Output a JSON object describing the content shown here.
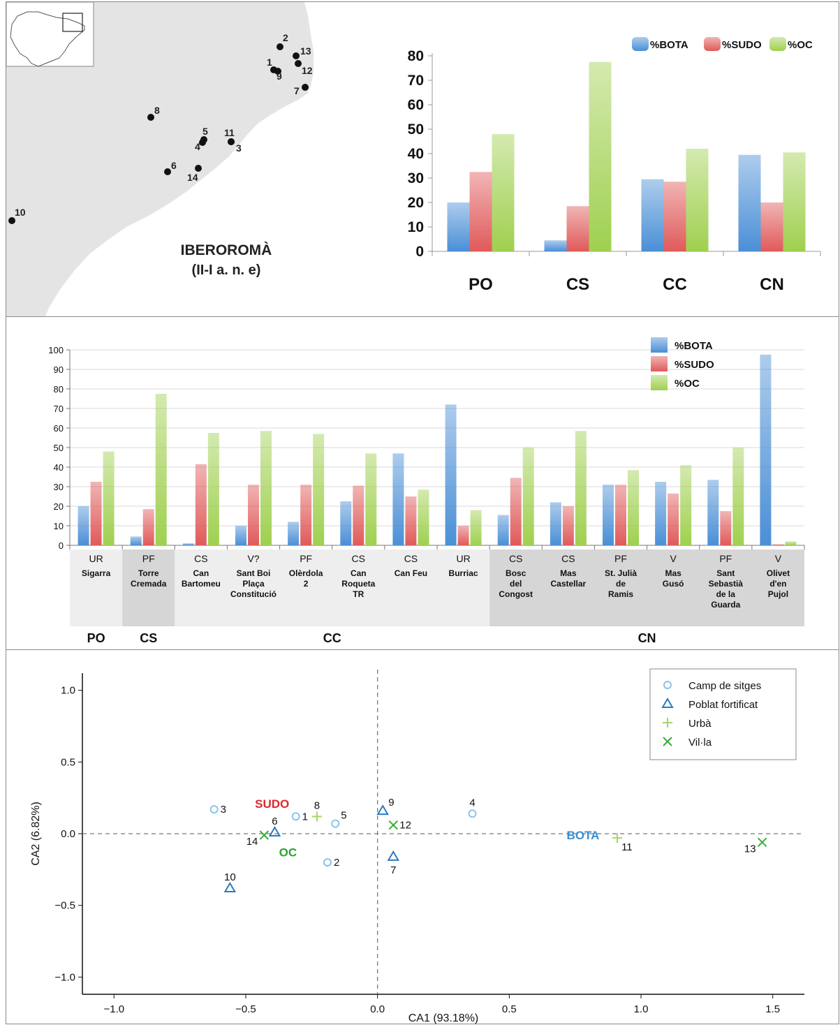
{
  "map": {
    "title_line1": "IBERO­ROMÀ",
    "title_line2": "(II-I a. n. e)",
    "site_labels": [
      "1",
      "2",
      "3",
      "4",
      "5",
      "6",
      "7",
      "8",
      "9",
      "10",
      "11",
      "12",
      "13",
      "14"
    ]
  },
  "colors": {
    "bota": "#4a8fd6",
    "sudo": "#e05a5a",
    "oc": "#9fd04f",
    "light_group": "#eeeeee",
    "dark_group": "#d6d6d6"
  },
  "chart_data": [
    {
      "type": "bar",
      "categories": [
        "PO",
        "CS",
        "CC",
        "CN"
      ],
      "series": [
        {
          "name": "%BOTA",
          "values": [
            20,
            4.5,
            29.5,
            39.5
          ]
        },
        {
          "name": "%SUDO",
          "values": [
            32.5,
            18.5,
            28.5,
            20
          ]
        },
        {
          "name": "%OC",
          "values": [
            48,
            77.5,
            42,
            40.5
          ]
        }
      ],
      "ylim": [
        0,
        80
      ],
      "yticks": [
        "0",
        "10",
        "20",
        "30",
        "40",
        "50",
        "60",
        "70",
        "80"
      ],
      "legend": "top-right",
      "grid": false
    },
    {
      "type": "bar",
      "categories": [
        {
          "type": "UR",
          "name": [
            "Sigarra"
          ]
        },
        {
          "type": "PF",
          "name": [
            "Torre",
            "Cremada"
          ]
        },
        {
          "type": "CS",
          "name": [
            "Can",
            "Bartomeu"
          ]
        },
        {
          "type": "V?",
          "name": [
            "Sant Boi",
            "Plaça",
            "Constitució"
          ]
        },
        {
          "type": "PF",
          "name": [
            "Olèrdola",
            "2"
          ]
        },
        {
          "type": "CS",
          "name": [
            "Can",
            "Roqueta",
            "TR"
          ]
        },
        {
          "type": "CS",
          "name": [
            "Can Feu"
          ]
        },
        {
          "type": "UR",
          "name": [
            "Burriac"
          ]
        },
        {
          "type": "CS",
          "name": [
            "Bosc",
            "del",
            "Congost"
          ]
        },
        {
          "type": "CS",
          "name": [
            "Mas",
            "Castellar"
          ]
        },
        {
          "type": "PF",
          "name": [
            "St. Julià",
            "de",
            "Ramis"
          ]
        },
        {
          "type": "V",
          "name": [
            "Mas",
            "Gusó"
          ]
        },
        {
          "type": "PF",
          "name": [
            "Sant",
            "Sebastià",
            "de la",
            "Guarda"
          ]
        },
        {
          "type": "V",
          "name": [
            "Olivet",
            "d'en",
            "Pujol"
          ]
        }
      ],
      "series": [
        {
          "name": "%BOTA",
          "values": [
            20,
            4.5,
            1,
            10,
            12,
            22.5,
            47,
            72,
            15.5,
            22,
            31,
            32.5,
            33.5,
            97.5
          ]
        },
        {
          "name": "%SUDO",
          "values": [
            32.5,
            18.5,
            41.5,
            31,
            31,
            30.5,
            25,
            10,
            34.5,
            20,
            31,
            26.5,
            17.5,
            0.5
          ]
        },
        {
          "name": "%OC",
          "values": [
            48,
            77.5,
            57.5,
            58.5,
            57,
            47,
            28.5,
            18,
            50,
            58.5,
            38.5,
            41,
            50,
            2
          ]
        }
      ],
      "groups": [
        {
          "label": "PO",
          "span": [
            0,
            0
          ]
        },
        {
          "label": "CS",
          "span": [
            1,
            1
          ]
        },
        {
          "label": "CC",
          "span": [
            2,
            7
          ]
        },
        {
          "label": "CN",
          "span": [
            8,
            13
          ]
        }
      ],
      "ylim": [
        0,
        100
      ],
      "yticks": [
        "0",
        "10",
        "20",
        "30",
        "40",
        "50",
        "60",
        "70",
        "80",
        "90",
        "100"
      ],
      "legend": "top-right",
      "grid": true
    },
    {
      "type": "scatter",
      "xlabel": "CA1 (93.18%)",
      "ylabel": "CA2 (6.82%)",
      "xlim": [
        -1.12,
        1.62
      ],
      "ylim": [
        -1.12,
        1.12
      ],
      "xticks": [
        {
          "v": -1.0,
          "t": "−1.0"
        },
        {
          "v": -0.5,
          "t": "−0.5"
        },
        {
          "v": 0.0,
          "t": "0.0"
        },
        {
          "v": 0.5,
          "t": "0.5"
        },
        {
          "v": 1.0,
          "t": "1.0"
        },
        {
          "v": 1.5,
          "t": "1.5"
        }
      ],
      "yticks": [
        {
          "v": -1.0,
          "t": "−1.0"
        },
        {
          "v": -0.5,
          "t": "−0.5"
        },
        {
          "v": 0.0,
          "t": "0.0"
        },
        {
          "v": 0.5,
          "t": "0.5"
        },
        {
          "v": 1.0,
          "t": "1.0"
        }
      ],
      "series": [
        {
          "name": "Camp de sitges",
          "marker": "circle",
          "color": "#8cc4e6",
          "points": [
            {
              "label": "1",
              "x": -0.31,
              "y": 0.12,
              "pos": "right"
            },
            {
              "label": "2",
              "x": -0.19,
              "y": -0.2,
              "pos": "right"
            },
            {
              "label": "3",
              "x": -0.62,
              "y": 0.17,
              "pos": "right"
            },
            {
              "label": "4",
              "x": 0.36,
              "y": 0.14,
              "pos": "above"
            },
            {
              "label": "5",
              "x": -0.16,
              "y": 0.07,
              "pos": "upright"
            }
          ]
        },
        {
          "name": "Poblat fortificat",
          "marker": "triangle",
          "color": "#2b7bbf",
          "points": [
            {
              "label": "6",
              "x": -0.39,
              "y": 0.01,
              "pos": "above"
            },
            {
              "label": "7",
              "x": 0.06,
              "y": -0.16,
              "pos": "below"
            },
            {
              "label": "9",
              "x": 0.02,
              "y": 0.16,
              "pos": "upright"
            },
            {
              "label": "10",
              "x": -0.56,
              "y": -0.38,
              "pos": "above"
            }
          ]
        },
        {
          "name": "Urbà",
          "marker": "plus",
          "color": "#a5d46a",
          "points": [
            {
              "label": "8",
              "x": -0.23,
              "y": 0.12,
              "pos": "above"
            },
            {
              "label": "11",
              "x": 0.91,
              "y": -0.03,
              "pos": "downright"
            }
          ]
        },
        {
          "name": "Vil·la",
          "marker": "x",
          "color": "#3aaa3a",
          "points": [
            {
              "label": "12",
              "x": 0.06,
              "y": 0.06,
              "pos": "right"
            },
            {
              "label": "13",
              "x": 1.46,
              "y": -0.06,
              "pos": "downleft"
            },
            {
              "label": "14",
              "x": -0.43,
              "y": -0.01,
              "pos": "downleft"
            }
          ]
        }
      ],
      "variables": [
        {
          "label": "SUDO",
          "x": -0.4,
          "y": 0.21,
          "color": "#e0262e"
        },
        {
          "label": "OC",
          "x": -0.34,
          "y": -0.13,
          "color": "#2fa02f"
        },
        {
          "label": "BOTA",
          "x": 0.78,
          "y": -0.01,
          "color": "#3a8ed0"
        }
      ],
      "legend": "top-right"
    }
  ]
}
